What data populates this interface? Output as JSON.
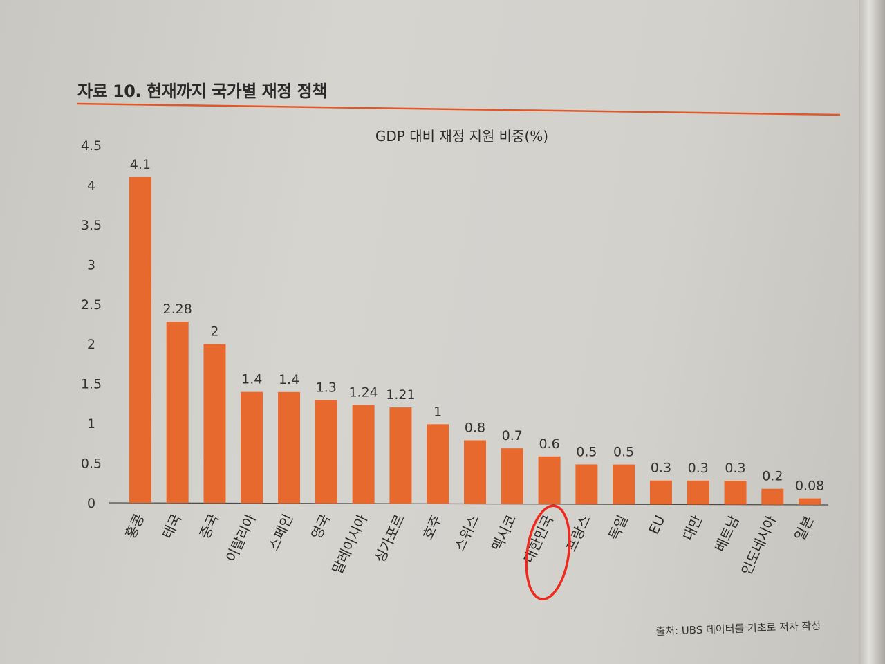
{
  "figure_title": "자료 10. 현재까지 국가별 재정 정책",
  "source": "출처: UBS 데이터를 기초로 저자 작성",
  "highlighted_category": "대한민국",
  "colors": {
    "bar": "#e8692e",
    "rule": "#e0582a",
    "highlight": "#ee2a1f"
  },
  "chart_data": {
    "type": "bar",
    "title": "GDP 대비 재정 지원 비중(%)",
    "xlabel": "",
    "ylabel": "",
    "ylim": [
      0,
      4.5
    ],
    "yticks": [
      "0",
      "0.5",
      "1",
      "1.5",
      "2",
      "2.5",
      "3",
      "3.5",
      "4",
      "4.5"
    ],
    "grid": false,
    "legend": "none",
    "categories": [
      "홍콩",
      "태국",
      "중국",
      "이탈리아",
      "스페인",
      "영국",
      "말레이시아",
      "싱가포르",
      "호주",
      "스위스",
      "멕시코",
      "대한민국",
      "프랑스",
      "독일",
      "EU",
      "대만",
      "베트남",
      "인도네시아",
      "일본"
    ],
    "values": [
      4.1,
      2.28,
      2,
      1.4,
      1.4,
      1.3,
      1.24,
      1.21,
      1,
      0.8,
      0.7,
      0.6,
      0.5,
      0.5,
      0.3,
      0.3,
      0.3,
      0.2,
      0.08
    ],
    "value_labels": [
      "4.1",
      "2.28",
      "2",
      "1.4",
      "1.4",
      "1.3",
      "1.24",
      "1.21",
      "1",
      "0.8",
      "0.7",
      "0.6",
      "0.5",
      "0.5",
      "0.3",
      "0.3",
      "0.3",
      "0.2",
      "0.08"
    ]
  }
}
